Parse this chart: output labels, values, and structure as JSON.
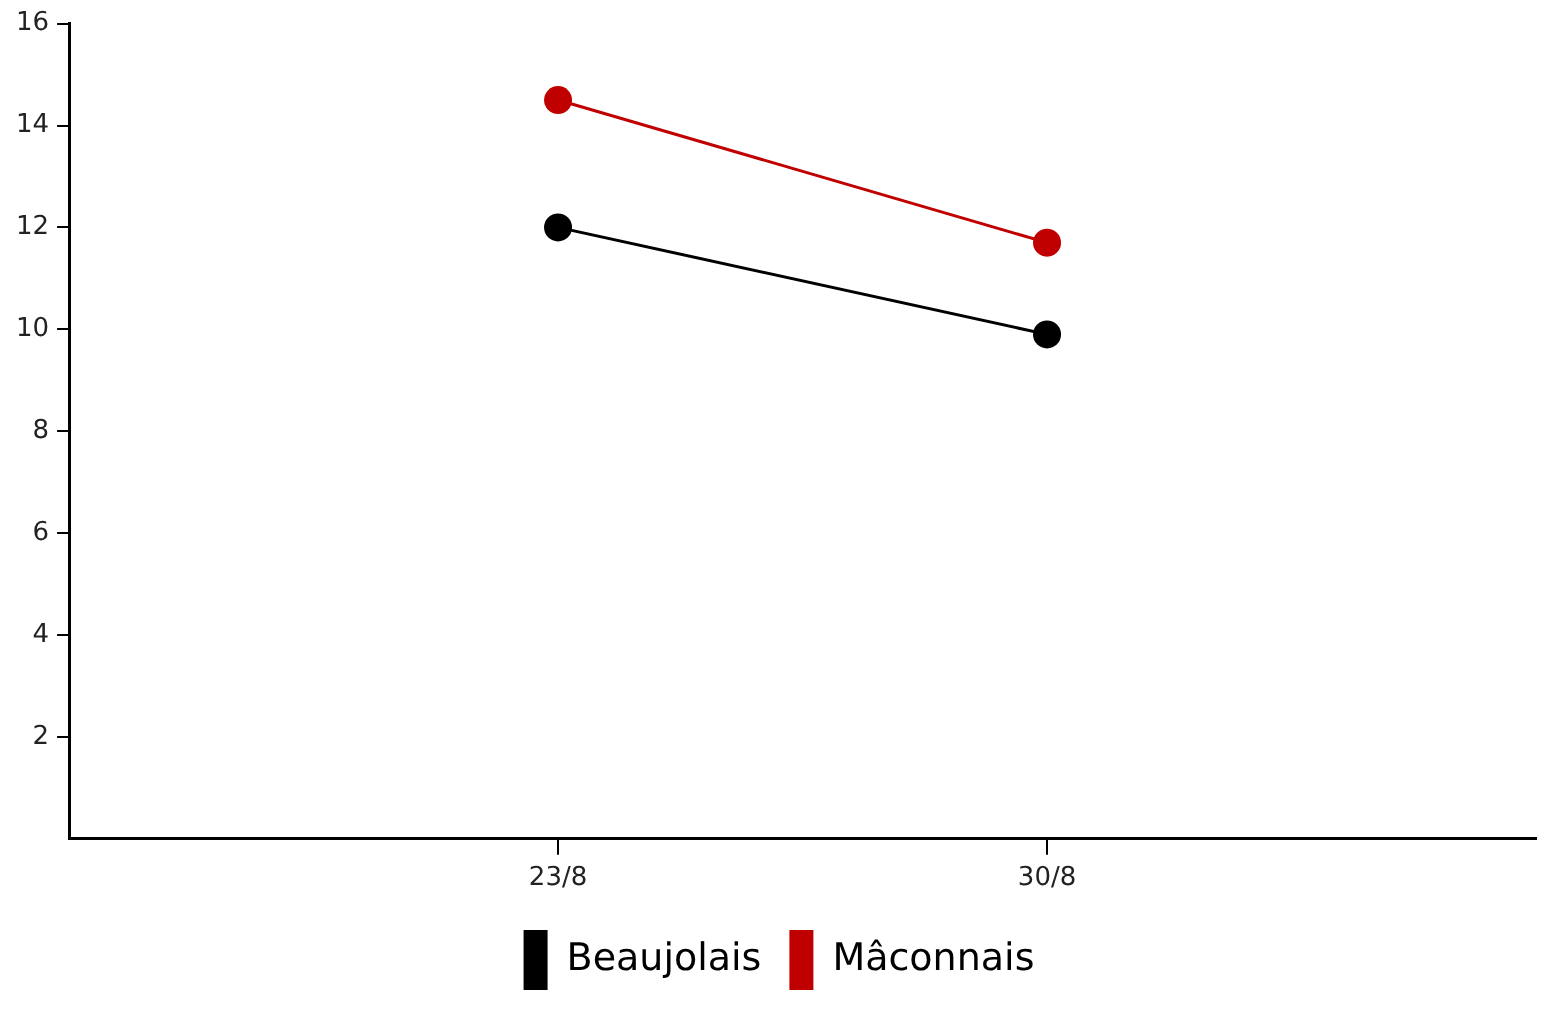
{
  "chart_data": {
    "type": "line",
    "categories": [
      null,
      "23/8",
      "30/8",
      null
    ],
    "series": [
      {
        "name": "Beaujolais",
        "color": "#000000",
        "values": [
          null,
          12.0,
          9.9,
          null
        ]
      },
      {
        "name": "Mâconnais",
        "color": "#c00000",
        "values": [
          null,
          14.5,
          11.7,
          null
        ]
      }
    ],
    "ylim": [
      0,
      16
    ],
    "yticks": [
      2,
      4,
      6,
      8,
      10,
      12,
      14,
      16
    ],
    "grid": false,
    "legend": "bottom",
    "marker": "circle",
    "line_style": "solid"
  }
}
